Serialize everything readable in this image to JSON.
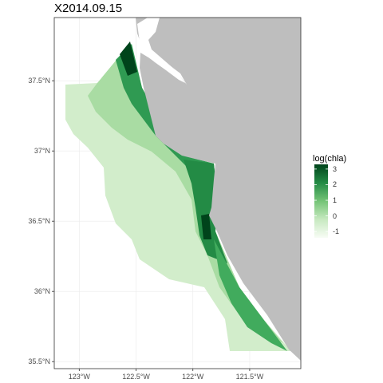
{
  "title": "X2014.09.15",
  "map": {
    "x_ticks": [
      "123°W",
      "122.5°W",
      "122°W",
      "121.5°W"
    ],
    "y_ticks": [
      "37.5°N",
      "37°N",
      "36.5°N",
      "36°N",
      "35.5°N"
    ],
    "lon_ticks": [
      -123,
      -122.5,
      -122,
      -121.5
    ],
    "lat_ticks": [
      37.5,
      37,
      36.5,
      36,
      35.5
    ],
    "lon_range": [
      -123.22,
      -121.05
    ],
    "lat_range": [
      35.45,
      37.95
    ],
    "land_color": "#bebebe",
    "panel_background": "#ffffff",
    "grid_color": "#ebebeb",
    "border_color": "#333333"
  },
  "legend": {
    "title": "log(chla)",
    "ticks": [
      "3",
      "2",
      "1",
      "0",
      "-1"
    ],
    "tick_values": [
      3,
      2,
      1,
      0,
      -1
    ],
    "range": [
      -1.4,
      3.3
    ],
    "colors": [
      "#f7fcf5",
      "#c7e9c0",
      "#74c476",
      "#238b45",
      "#00441b"
    ]
  }
}
